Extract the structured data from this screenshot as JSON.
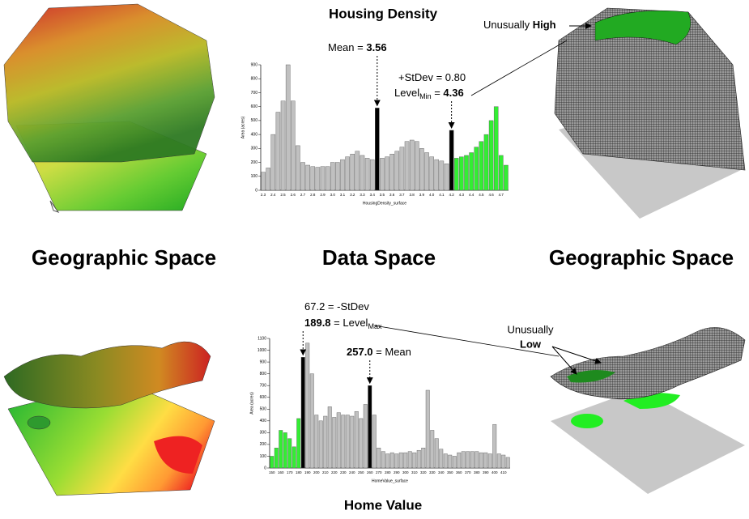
{
  "chart_data": [
    {
      "type": "bar",
      "title": "Housing Density",
      "y_label": "Area (acres)",
      "x_label": "HousingDensity_surface",
      "categories": [
        "2.3",
        null,
        "2.4",
        null,
        "2.5",
        null,
        "2.6",
        null,
        "2.7",
        null,
        "2.8",
        null,
        "2.9",
        null,
        "3.0",
        null,
        "3.1",
        null,
        "3.2",
        null,
        "3.3",
        null,
        "3.4",
        null,
        "3.5",
        null,
        "3.6",
        null,
        "3.7",
        null,
        "3.8",
        null,
        "3.9",
        null,
        "4.0",
        null,
        "4.1",
        null,
        "4.2",
        null,
        "4.3",
        null,
        "4.4",
        null,
        "4.5",
        null,
        "4.6",
        null,
        "4.7",
        null
      ],
      "values": [
        130,
        160,
        400,
        560,
        640,
        900,
        640,
        320,
        200,
        180,
        170,
        165,
        170,
        170,
        200,
        200,
        220,
        240,
        260,
        280,
        250,
        230,
        220,
        590,
        230,
        240,
        260,
        280,
        310,
        350,
        360,
        350,
        300,
        270,
        240,
        220,
        210,
        190,
        430,
        230,
        240,
        250,
        270,
        310,
        350,
        400,
        500,
        600,
        250,
        180
      ],
      "colors": [
        "#c0c0c0",
        "#c0c0c0",
        "#c0c0c0",
        "#c0c0c0",
        "#c0c0c0",
        "#c0c0c0",
        "#c0c0c0",
        "#c0c0c0",
        "#c0c0c0",
        "#c0c0c0",
        "#c0c0c0",
        "#c0c0c0",
        "#c0c0c0",
        "#c0c0c0",
        "#c0c0c0",
        "#c0c0c0",
        "#c0c0c0",
        "#c0c0c0",
        "#c0c0c0",
        "#c0c0c0",
        "#c0c0c0",
        "#c0c0c0",
        "#c0c0c0",
        "#000000",
        "#c0c0c0",
        "#c0c0c0",
        "#c0c0c0",
        "#c0c0c0",
        "#c0c0c0",
        "#c0c0c0",
        "#c0c0c0",
        "#c0c0c0",
        "#c0c0c0",
        "#c0c0c0",
        "#c0c0c0",
        "#c0c0c0",
        "#c0c0c0",
        "#c0c0c0",
        "#000000",
        "#33ee33",
        "#33ee33",
        "#33ee33",
        "#33ee33",
        "#33ee33",
        "#33ee33",
        "#33ee33",
        "#33ee33",
        "#33ee33",
        "#33ee33",
        "#33ee33"
      ],
      "ylim": [
        0,
        900
      ],
      "yticks": [
        0,
        100,
        200,
        300,
        400,
        500,
        600,
        700,
        800,
        900
      ],
      "annotations": [
        {
          "parts": [
            {
              "text": "Mean = ",
              "style": "normal"
            },
            {
              "text": "3.56",
              "style": "bold"
            }
          ]
        },
        {
          "parts": [
            {
              "text": "+StDev = 0.80",
              "style": "normal"
            }
          ]
        },
        {
          "parts": [
            {
              "text": "Level",
              "style": "normal"
            },
            {
              "text": "Min",
              "style": "sub"
            },
            {
              "text": " = ",
              "style": "normal"
            },
            {
              "text": "4.36",
              "style": "bold"
            }
          ]
        }
      ]
    },
    {
      "type": "bar",
      "title": "Home Value",
      "y_label": "Area (acres)",
      "x_label": "HomeValue_surface",
      "categories": [
        "150",
        null,
        "160",
        null,
        "170",
        null,
        "180",
        null,
        "190",
        null,
        "200",
        null,
        "210",
        null,
        "220",
        null,
        "230",
        null,
        "240",
        null,
        "250",
        null,
        "260",
        null,
        "270",
        null,
        "280",
        null,
        "290",
        null,
        "300",
        null,
        "310",
        null,
        "320",
        null,
        "330",
        null,
        "340",
        null,
        "350",
        null,
        "360",
        null,
        "370",
        null,
        "380",
        null,
        "390",
        null,
        "400",
        null,
        "410",
        null
      ],
      "values": [
        100,
        170,
        320,
        300,
        250,
        180,
        420,
        940,
        1060,
        800,
        450,
        400,
        440,
        520,
        430,
        470,
        450,
        450,
        440,
        480,
        420,
        540,
        700,
        450,
        170,
        140,
        120,
        130,
        120,
        130,
        130,
        140,
        130,
        150,
        170,
        660,
        320,
        250,
        160,
        120,
        110,
        100,
        130,
        140,
        140,
        140,
        140,
        130,
        130,
        120,
        370,
        120,
        110,
        90
      ],
      "colors": [
        "#33ee33",
        "#33ee33",
        "#33ee33",
        "#33ee33",
        "#33ee33",
        "#33ee33",
        "#33ee33",
        "#000000",
        "#c0c0c0",
        "#c0c0c0",
        "#c0c0c0",
        "#c0c0c0",
        "#c0c0c0",
        "#c0c0c0",
        "#c0c0c0",
        "#c0c0c0",
        "#c0c0c0",
        "#c0c0c0",
        "#c0c0c0",
        "#c0c0c0",
        "#c0c0c0",
        "#c0c0c0",
        "#000000",
        "#c0c0c0",
        "#c0c0c0",
        "#c0c0c0",
        "#c0c0c0",
        "#c0c0c0",
        "#c0c0c0",
        "#c0c0c0",
        "#c0c0c0",
        "#c0c0c0",
        "#c0c0c0",
        "#c0c0c0",
        "#c0c0c0",
        "#c0c0c0",
        "#c0c0c0",
        "#c0c0c0",
        "#c0c0c0",
        "#c0c0c0",
        "#c0c0c0",
        "#c0c0c0",
        "#c0c0c0",
        "#c0c0c0",
        "#c0c0c0",
        "#c0c0c0",
        "#c0c0c0",
        "#c0c0c0",
        "#c0c0c0",
        "#c0c0c0",
        "#c0c0c0",
        "#c0c0c0",
        "#c0c0c0",
        "#c0c0c0"
      ],
      "ylim": [
        0,
        1100
      ],
      "yticks": [
        0,
        100,
        200,
        300,
        400,
        500,
        600,
        700,
        800,
        900,
        1000,
        1100
      ],
      "annotations": [
        {
          "parts": [
            {
              "text": "67.2 = -StDev",
              "style": "normal"
            }
          ]
        },
        {
          "parts": [
            {
              "text": "189.8",
              "style": "bold"
            },
            {
              "text": " = Level",
              "style": "normal"
            },
            {
              "text": "Max",
              "style": "sub"
            }
          ]
        },
        {
          "parts": [
            {
              "text": "257.0",
              "style": "bold"
            },
            {
              "text": " = Mean",
              "style": "normal"
            }
          ]
        }
      ]
    }
  ],
  "labels": {
    "left": "Geographic Space",
    "middle": "Data Space",
    "right": "Geographic Space"
  },
  "callouts": {
    "high": [
      {
        "text": "Unusually ",
        "style": "normal"
      },
      {
        "text": "High",
        "style": "bold"
      }
    ],
    "low_1": "Unusually",
    "low_2": "Low"
  }
}
